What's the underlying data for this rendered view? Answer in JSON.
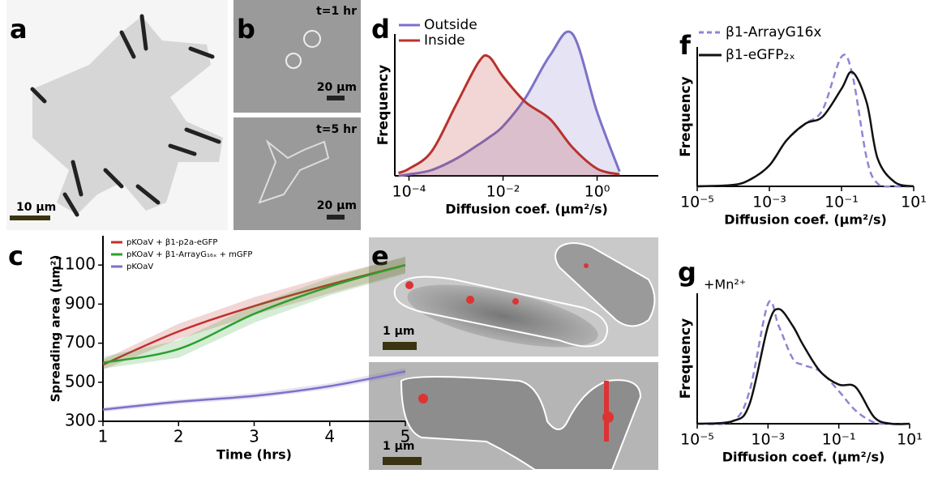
{
  "figure": {
    "panel_labels": [
      "a",
      "b",
      "c",
      "d",
      "e",
      "f",
      "g"
    ],
    "image_labels": [
      "10 μm",
      "t=1 hr",
      "20 μm",
      "t=5 hr",
      "20 μm",
      "1 μm",
      "1 μm"
    ]
  },
  "chart_data": [
    {
      "type": "line",
      "xlabel": "Time (hrs)",
      "ylabel": "Spreading area (μm²)",
      "x": [
        1,
        2,
        3,
        4,
        5
      ],
      "xlim": [
        1,
        5
      ],
      "xticks": [
        1,
        2,
        3,
        4,
        5
      ],
      "ylim": [
        300,
        1250
      ],
      "yticks": [
        300,
        500,
        700,
        900,
        1100
      ],
      "legend": "upper left",
      "bands": true,
      "series": [
        {
          "name": "pKOaV + β1-p2a-eGFP",
          "color": "#c0302b",
          "values": [
            590,
            760,
            890,
            1000,
            1100
          ],
          "errors": [
            25,
            40,
            45,
            45,
            40
          ]
        },
        {
          "name": "pKOaV + β1-ArrayG₁₆ₓ + mGFP",
          "color": "#2ca02c",
          "values": [
            600,
            670,
            850,
            990,
            1100
          ],
          "errors": [
            30,
            45,
            45,
            45,
            45
          ]
        },
        {
          "name": "pKOaV",
          "color": "#7b72c8",
          "values": [
            360,
            400,
            430,
            480,
            555
          ],
          "errors": [
            12,
            12,
            14,
            15,
            18
          ]
        }
      ]
    },
    {
      "type": "area",
      "xlabel": "Diffusion coef. (μm²/s)",
      "ylabel": "Frequency",
      "log_x": true,
      "x": [
        6e-05,
        0.0001,
        0.0003,
        0.001,
        0.003,
        0.005,
        0.01,
        0.03,
        0.1,
        0.3,
        1,
        3
      ],
      "xlim": [
        5e-05,
        20
      ],
      "xticks": [
        {
          "value": 0.0001,
          "label": "10⁻⁴"
        },
        {
          "value": 0.01,
          "label": "10⁻²"
        },
        {
          "value": 1,
          "label": "10⁰"
        }
      ],
      "ylim": [
        0,
        1
      ],
      "legend": "upper left",
      "series": [
        {
          "name": "Outside",
          "color": "#7b72c8",
          "values": [
            0,
            0.01,
            0.04,
            0.12,
            0.22,
            0.27,
            0.35,
            0.55,
            0.85,
            1.0,
            0.45,
            0.03
          ]
        },
        {
          "name": "Inside",
          "color": "#b8322e",
          "values": [
            0.02,
            0.05,
            0.17,
            0.5,
            0.8,
            0.84,
            0.7,
            0.52,
            0.4,
            0.2,
            0.05,
            0.01
          ]
        }
      ]
    },
    {
      "type": "line",
      "xlabel": "Diffusion coef. (μm²/s)",
      "ylabel": "Frequency",
      "log_x": true,
      "x": [
        1e-05,
        0.0001,
        0.0003,
        0.001,
        0.003,
        0.01,
        0.03,
        0.1,
        0.2,
        0.5,
        1,
        3,
        10
      ],
      "xlim": [
        1e-05,
        10
      ],
      "xticks": [
        {
          "value": 1e-05,
          "label": "10⁻⁵"
        },
        {
          "value": 0.001,
          "label": "10⁻³"
        },
        {
          "value": 0.1,
          "label": "10⁻¹"
        },
        {
          "value": 10,
          "label": "10¹"
        }
      ],
      "ylim": [
        0,
        1
      ],
      "legend": "upper left",
      "series": [
        {
          "name": "β1-ArrayG16x",
          "color": "#8d86d6",
          "dash": true,
          "values": [
            0,
            0.01,
            0.05,
            0.15,
            0.33,
            0.45,
            0.55,
            0.93,
            0.8,
            0.2,
            0.02,
            0,
            0
          ]
        },
        {
          "name": "β1-eGFP₂ₓ",
          "color": "#111111",
          "values": [
            0,
            0.01,
            0.05,
            0.15,
            0.33,
            0.45,
            0.5,
            0.7,
            0.82,
            0.6,
            0.2,
            0.03,
            0
          ]
        }
      ]
    },
    {
      "type": "line",
      "xlabel": "Diffusion coef. (μm²/s)",
      "ylabel": "Frequency",
      "log_x": true,
      "annotation": "+Mn²⁺",
      "x": [
        1e-05,
        0.0001,
        0.0003,
        0.001,
        0.002,
        0.005,
        0.01,
        0.03,
        0.1,
        0.3,
        1,
        3,
        10
      ],
      "xlim": [
        1e-05,
        10
      ],
      "xticks": [
        {
          "value": 1e-05,
          "label": "10⁻⁵"
        },
        {
          "value": 0.001,
          "label": "10⁻³"
        },
        {
          "value": 0.1,
          "label": "10⁻¹"
        },
        {
          "value": 10,
          "label": "10¹"
        }
      ],
      "ylim": [
        0,
        1
      ],
      "series": [
        {
          "color": "#8d86d6",
          "dash": true,
          "values": [
            0,
            0.02,
            0.25,
            0.92,
            0.75,
            0.5,
            0.45,
            0.4,
            0.25,
            0.1,
            0.01,
            0,
            0
          ]
        },
        {
          "color": "#111111",
          "values": [
            0,
            0.02,
            0.15,
            0.75,
            0.88,
            0.75,
            0.6,
            0.4,
            0.3,
            0.28,
            0.05,
            0,
            0
          ]
        }
      ]
    }
  ]
}
